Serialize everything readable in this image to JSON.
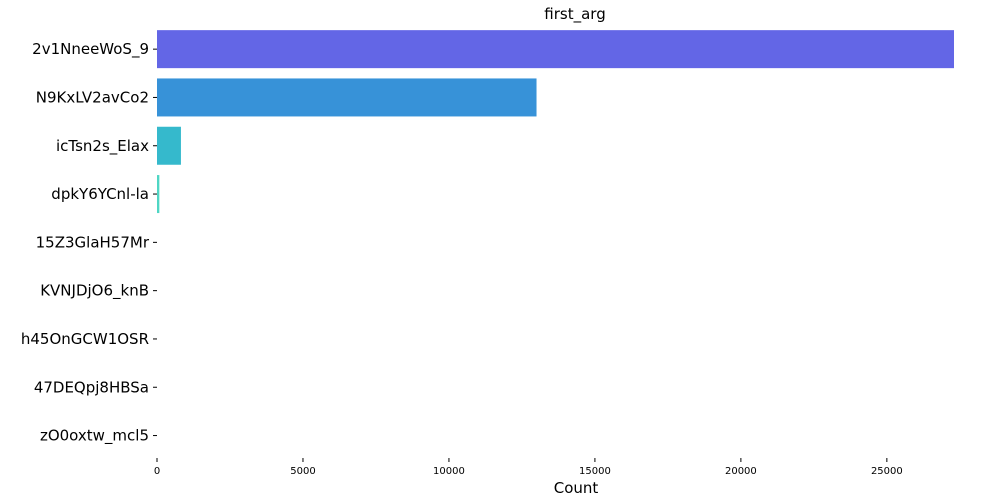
{
  "chart_data": {
    "type": "bar",
    "orientation": "horizontal",
    "title": "first_arg",
    "xlabel": "Count",
    "ylabel": "",
    "categories": [
      "2v1NneeWoS_9",
      "N9KxLV2avCo2",
      "icTsn2s_Elax",
      "dpkY6YCnl-la",
      "15Z3GlaH57Mr",
      "KVNJDjO6_knB",
      "h45OnGCW1OSR",
      "47DEQpj8HBSa",
      "zO0oxtw_mcl5"
    ],
    "values": [
      27300,
      13000,
      820,
      80,
      0,
      0,
      0,
      0,
      0
    ],
    "colors": [
      "#6366e6",
      "#3792d8",
      "#35b9cc",
      "#4fd6c4",
      "#5fdcc0",
      "#6de0bb",
      "#7be4b6",
      "#8ae8b0",
      "#99ecab"
    ],
    "xlim": [
      0,
      27300
    ],
    "xticks": [
      0,
      5000,
      10000,
      15000,
      20000,
      25000
    ],
    "grid": false,
    "legend": "none"
  }
}
